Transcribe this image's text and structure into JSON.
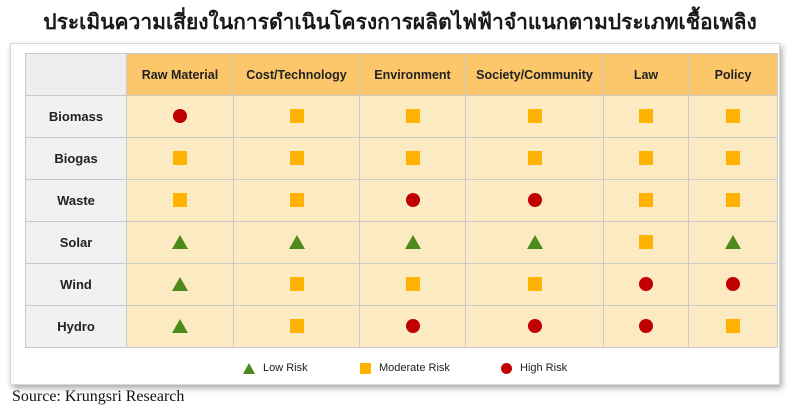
{
  "chart_data": {
    "type": "table",
    "title": "ประเมินความเสี่ยงในการดำเนินโครงการผลิตไฟฟ้าจำแนกตามประเภทเชื้อเพลิง",
    "columns": [
      "Raw Material",
      "Cost/Technology",
      "Environment",
      "Society/Community",
      "Law",
      "Policy"
    ],
    "rows": [
      {
        "label": "Biomass",
        "values": [
          "high",
          "moderate",
          "moderate",
          "moderate",
          "moderate",
          "moderate"
        ]
      },
      {
        "label": "Biogas",
        "values": [
          "moderate",
          "moderate",
          "moderate",
          "moderate",
          "moderate",
          "moderate"
        ]
      },
      {
        "label": "Waste",
        "values": [
          "moderate",
          "moderate",
          "high",
          "high",
          "moderate",
          "moderate"
        ]
      },
      {
        "label": "Solar",
        "values": [
          "low",
          "low",
          "low",
          "low",
          "moderate",
          "low"
        ]
      },
      {
        "label": "Wind",
        "values": [
          "low",
          "moderate",
          "moderate",
          "moderate",
          "high",
          "high"
        ]
      },
      {
        "label": "Hydro",
        "values": [
          "low",
          "moderate",
          "high",
          "high",
          "high",
          "moderate"
        ]
      }
    ],
    "legend": [
      {
        "key": "low",
        "label": "Low Risk",
        "shape": "triangle",
        "color": "#4e8a1a"
      },
      {
        "key": "moderate",
        "label": "Moderate Risk",
        "shape": "square",
        "color": "#ffb300"
      },
      {
        "key": "high",
        "label": "High Risk",
        "shape": "circle",
        "color": "#c00000"
      }
    ],
    "legend_position": "bottom-center"
  },
  "source": "Source:  Krungsri  Research",
  "colors": {
    "header_fill": "#fcc76a",
    "cell_fill": "#fcebc2",
    "row_header_fill": "#f1f1f1"
  }
}
